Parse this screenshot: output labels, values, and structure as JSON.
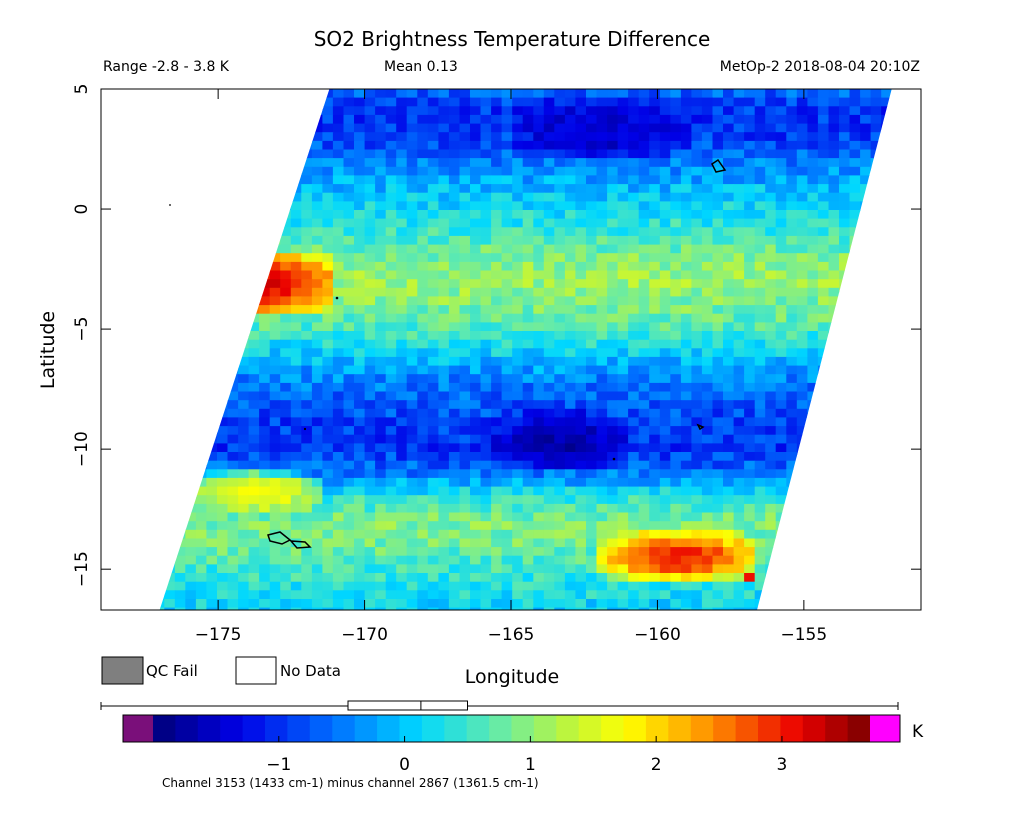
{
  "header": {
    "title": "SO2 Brightness Temperature Difference",
    "range_text": "Range -2.8 - 3.8 K",
    "mean_text": "Mean 0.13",
    "satellite_text": "MetOp-2 2018-08-04 20:10Z"
  },
  "legend": {
    "qc_fail_label": "QC Fail",
    "no_data_label": "No Data",
    "qc_fail_color": "#7f7f7f",
    "no_data_color": "#ffffff"
  },
  "colorbar": {
    "unit": "K",
    "range": [
      -2.0,
      3.7
    ],
    "tick_values": [
      -1,
      0,
      1,
      2,
      3
    ],
    "tick_labels": [
      "−1",
      "0",
      "1",
      "2",
      "3"
    ],
    "under_color": "#7a0f7a",
    "over_color": "#ff00ff",
    "caption": "Channel 3153 (1433 cm-1) minus channel 2867 (1361.5 cm-1)"
  },
  "chart_data": {
    "type": "heatmap",
    "title": "SO2 Brightness Temperature Difference",
    "xlabel": "Longitude",
    "ylabel": "Latitude",
    "xlim": [
      -179.0,
      -151.0
    ],
    "ylim": [
      -16.7,
      5.0
    ],
    "x_ticks": [
      -175,
      -170,
      -165,
      -160,
      -155
    ],
    "x_tick_labels": [
      "−175",
      "−170",
      "−165",
      "−160",
      "−155"
    ],
    "y_ticks": [
      5,
      0,
      -5,
      -10,
      -15
    ],
    "y_tick_labels": [
      "5",
      "0",
      "−5",
      "−10",
      "−15"
    ],
    "value_range": [
      -2.8,
      3.8
    ],
    "mean": 0.13,
    "unit": "K",
    "swath_corners_lon_lat": [
      [
        -171.2,
        5.0
      ],
      [
        -152.0,
        5.0
      ],
      [
        -156.6,
        -16.7
      ],
      [
        -177.0,
        -16.7
      ]
    ],
    "latitude_profile": [
      [
        5.0,
        -0.6
      ],
      [
        4.0,
        -1.0
      ],
      [
        3.0,
        -0.9
      ],
      [
        2.0,
        -0.5
      ],
      [
        1.0,
        -0.1
      ],
      [
        0.0,
        0.2
      ],
      [
        -1.0,
        0.5
      ],
      [
        -2.0,
        0.9
      ],
      [
        -3.0,
        1.1
      ],
      [
        -4.0,
        0.9
      ],
      [
        -5.0,
        0.6
      ],
      [
        -6.0,
        0.1
      ],
      [
        -7.0,
        -0.4
      ],
      [
        -8.0,
        -0.7
      ],
      [
        -9.0,
        -0.9
      ],
      [
        -10.0,
        -1.0
      ],
      [
        -11.0,
        -0.5
      ],
      [
        -12.0,
        0.4
      ],
      [
        -13.0,
        0.9
      ],
      [
        -14.0,
        0.8
      ],
      [
        -15.0,
        0.5
      ],
      [
        -16.7,
        0.1
      ]
    ],
    "features": [
      {
        "region": "hot spot",
        "lon_range": [
          -176.0,
          -171.0
        ],
        "lat_range": [
          -4.5,
          -1.8
        ],
        "value": 3.2
      },
      {
        "region": "hot band",
        "lon_range": [
          -162.0,
          -156.5
        ],
        "lat_range": [
          -15.5,
          -13.5
        ],
        "value": 3.0
      },
      {
        "region": "saturated pixel",
        "lon_range": [
          -157.0,
          -156.5
        ],
        "lat_range": [
          -15.5,
          -15.0
        ],
        "value": 3.8
      },
      {
        "region": "warm band",
        "lon_range": [
          -176.0,
          -171.5
        ],
        "lat_range": [
          -12.5,
          -11.0
        ],
        "value": 1.8
      },
      {
        "region": "cold patch",
        "lon_range": [
          -165.5,
          -161.0
        ],
        "lat_range": [
          -11.0,
          -8.5
        ],
        "value": -1.7
      },
      {
        "region": "cold patch",
        "lon_range": [
          -165.0,
          -159.0
        ],
        "lat_range": [
          4.5,
          2.0
        ],
        "value": -1.5
      }
    ],
    "colorbar_min": -2.0,
    "colorbar_max": 3.7
  }
}
